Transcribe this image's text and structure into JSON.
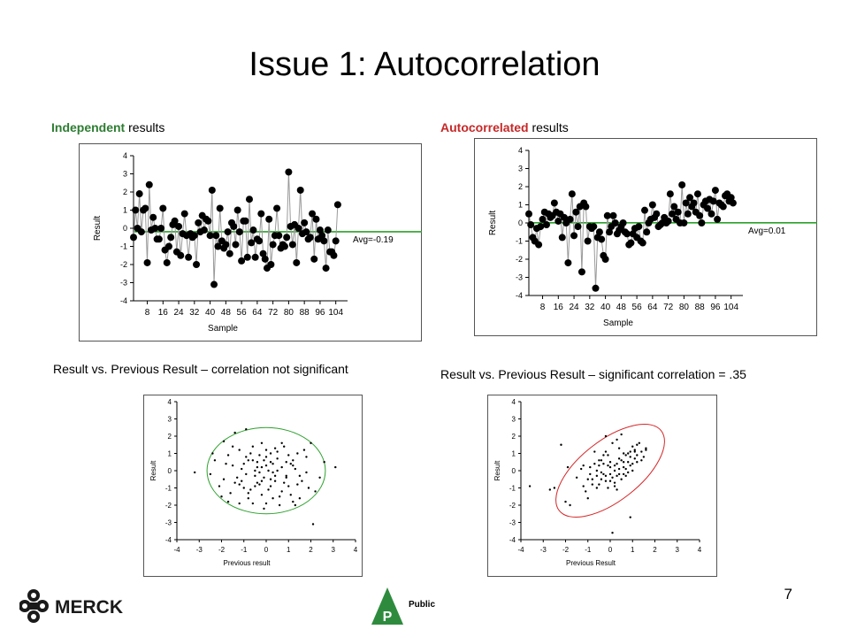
{
  "slide": {
    "title": "Issue 1: Autocorrelation",
    "page_number": "7",
    "logo_text": "MERCK",
    "public_mark": "P",
    "public_label": "Public"
  },
  "left": {
    "heading_bold": "Independent",
    "heading_rest": " results",
    "heading_color": "#2e7d32",
    "caption": "Result vs. Previous Result – correlation not significant"
  },
  "right": {
    "heading_bold": "Autocorrelated",
    "heading_rest": " results",
    "heading_color": "#c62828",
    "caption": "Result vs. Previous Result – significant correlation = .35"
  },
  "chart_data": [
    {
      "type": "line",
      "name": "independent-run-chart",
      "xlabel": "Sample",
      "ylabel": "Result",
      "xticks": [
        "8",
        "16",
        "24",
        "32",
        "40",
        "48",
        "56",
        "64",
        "72",
        "80",
        "88",
        "96",
        "104"
      ],
      "yticks": [
        "4",
        "3",
        "2",
        "1",
        "0",
        "-1",
        "-2",
        "-3",
        "-4"
      ],
      "xlim": [
        1,
        110
      ],
      "ylim": [
        -4,
        4
      ],
      "avg": -0.19,
      "avg_label": "Avg=-0.19",
      "avg_color": "#2ca02c",
      "x": [
        1,
        2,
        3,
        4,
        5,
        6,
        7,
        8,
        9,
        10,
        11,
        12,
        13,
        14,
        15,
        16,
        17,
        18,
        19,
        20,
        21,
        22,
        23,
        24,
        25,
        26,
        27,
        28,
        29,
        30,
        31,
        32,
        33,
        34,
        35,
        36,
        37,
        38,
        39,
        40,
        41,
        42,
        43,
        44,
        45,
        46,
        47,
        48,
        49,
        50,
        51,
        52,
        53,
        54,
        55,
        56,
        57,
        58,
        59,
        60,
        61,
        62,
        63,
        64,
        65,
        66,
        67,
        68,
        69,
        70,
        71,
        72,
        73,
        74,
        75,
        76,
        77,
        78,
        79,
        80,
        81,
        82,
        83,
        84,
        85,
        86,
        87,
        88,
        89,
        90,
        91,
        92,
        93,
        94,
        95,
        96,
        97,
        98,
        99,
        100,
        101,
        102,
        103,
        104,
        105
      ],
      "values": [
        -0.5,
        1.0,
        0.0,
        1.9,
        -0.2,
        1.0,
        1.1,
        -1.9,
        2.4,
        -0.1,
        0.6,
        0.0,
        -0.6,
        -0.6,
        0.0,
        1.1,
        -1.2,
        -1.9,
        -1.0,
        -0.5,
        0.2,
        0.4,
        -1.3,
        0.1,
        -1.5,
        -0.3,
        0.8,
        -0.4,
        -1.6,
        -0.3,
        -0.5,
        -0.4,
        -2.0,
        0.3,
        -0.2,
        0.7,
        -0.1,
        0.5,
        0.4,
        -0.4,
        2.1,
        -3.1,
        -0.4,
        -1.0,
        1.1,
        -0.7,
        -1.1,
        -0.9,
        -0.2,
        -1.4,
        0.3,
        0.1,
        -0.9,
        1.0,
        -0.2,
        -1.8,
        0.4,
        0.4,
        -1.6,
        1.6,
        -0.8,
        -0.1,
        -1.6,
        -0.6,
        -0.7,
        0.8,
        -1.4,
        -1.7,
        -2.2,
        0.5,
        -2.0,
        -0.9,
        -0.4,
        1.1,
        -0.4,
        -1.1,
        -0.9,
        -1.0,
        -0.5,
        3.1,
        0.1,
        -0.9,
        0.2,
        -1.9,
        0.0,
        2.1,
        -0.3,
        0.3,
        -0.2,
        -0.6,
        -0.5,
        0.8,
        -1.7,
        0.5,
        -0.6,
        -0.1,
        -0.4,
        -0.7,
        -2.2,
        -0.1,
        -1.3,
        -1.3,
        -1.5,
        -0.7,
        1.3
      ]
    },
    {
      "type": "line",
      "name": "autocorrelated-run-chart",
      "xlabel": "Sample",
      "ylabel": "Result",
      "xticks": [
        "8",
        "16",
        "24",
        "32",
        "40",
        "48",
        "56",
        "64",
        "72",
        "80",
        "88",
        "96",
        "104"
      ],
      "yticks": [
        "4",
        "3",
        "2",
        "1",
        "0",
        "-1",
        "-2",
        "-3",
        "-4"
      ],
      "xlim": [
        1,
        110
      ],
      "ylim": [
        -4,
        4
      ],
      "avg": 0.01,
      "avg_label": "Avg=0.01",
      "avg_color": "#2ca02c",
      "x": [
        1,
        2,
        3,
        4,
        5,
        6,
        7,
        8,
        9,
        10,
        11,
        12,
        13,
        14,
        15,
        16,
        17,
        18,
        19,
        20,
        21,
        22,
        23,
        24,
        25,
        26,
        27,
        28,
        29,
        30,
        31,
        32,
        33,
        34,
        35,
        36,
        37,
        38,
        39,
        40,
        41,
        42,
        43,
        44,
        45,
        46,
        47,
        48,
        49,
        50,
        51,
        52,
        53,
        54,
        55,
        56,
        57,
        58,
        59,
        60,
        61,
        62,
        63,
        64,
        65,
        66,
        67,
        68,
        69,
        70,
        71,
        72,
        73,
        74,
        75,
        76,
        77,
        78,
        79,
        80,
        81,
        82,
        83,
        84,
        85,
        86,
        87,
        88,
        89,
        90,
        91,
        92,
        93,
        94,
        95,
        96,
        97,
        98,
        99,
        100,
        101,
        102,
        103,
        104,
        105
      ],
      "values": [
        0.5,
        -0.1,
        -0.8,
        -1.0,
        -0.3,
        -1.2,
        -0.2,
        0.2,
        0.6,
        -0.1,
        0.5,
        0.3,
        0.4,
        1.1,
        0.6,
        0.1,
        0.5,
        -0.8,
        0.3,
        0.0,
        -2.2,
        0.2,
        1.6,
        -0.7,
        0.6,
        -0.2,
        0.9,
        -2.7,
        1.1,
        0.9,
        -1.0,
        -0.2,
        -0.3,
        -0.2,
        -3.6,
        -0.8,
        -0.5,
        -0.9,
        -1.8,
        -2.0,
        0.4,
        -0.5,
        -0.2,
        0.4,
        0.0,
        -0.6,
        -0.4,
        -0.2,
        0.0,
        -0.5,
        -0.6,
        -1.2,
        -1.1,
        -0.6,
        -0.3,
        -0.8,
        -0.2,
        -1.0,
        -1.1,
        0.7,
        -0.5,
        0.0,
        0.2,
        1.0,
        0.3,
        0.5,
        -0.2,
        -0.1,
        0.0,
        0.3,
        0.0,
        0.1,
        1.6,
        0.5,
        0.9,
        0.2,
        0.6,
        0.0,
        2.1,
        0.0,
        1.1,
        0.5,
        1.4,
        0.9,
        1.1,
        0.6,
        1.6,
        0.4,
        0.0,
        1.0,
        1.2,
        0.8,
        1.3,
        0.5,
        1.2,
        1.8,
        0.2,
        1.1,
        1.0,
        0.9,
        1.5,
        1.6,
        1.2,
        1.4,
        1.1
      ]
    },
    {
      "type": "scatter",
      "name": "independent-lag-scatter",
      "xlabel": "Previous result",
      "ylabel": "Result",
      "xticks": [
        "-4",
        "-3",
        "-2",
        "-1",
        "0",
        "1",
        "2",
        "3",
        "4"
      ],
      "yticks": [
        "4",
        "3",
        "2",
        "1",
        "0",
        "-1",
        "-2",
        "-3",
        "-4"
      ],
      "xlim": [
        -4,
        4
      ],
      "ylim": [
        -4,
        4
      ],
      "ellipse_color": "#2ca02c",
      "points": [
        [
          -1.2,
          -0.8
        ],
        [
          -0.6,
          0.6
        ],
        [
          0.2,
          -0.9
        ],
        [
          -0.4,
          0.2
        ],
        [
          0.5,
          1.1
        ],
        [
          -0.1,
          -0.4
        ],
        [
          -1.5,
          1.4
        ],
        [
          1.2,
          0.3
        ],
        [
          -0.8,
          -1.6
        ],
        [
          0.3,
          0.4
        ],
        [
          -2.5,
          -0.2
        ],
        [
          3.1,
          0.2
        ],
        [
          -0.9,
          2.4
        ],
        [
          0.0,
          -1.9
        ],
        [
          1.5,
          -0.3
        ],
        [
          -1.7,
          0.9
        ],
        [
          0.7,
          -1.2
        ],
        [
          -0.2,
          1.6
        ],
        [
          2.1,
          -3.1
        ],
        [
          -3.2,
          -0.1
        ],
        [
          0.9,
          0.5
        ],
        [
          -0.5,
          -0.3
        ],
        [
          1.1,
          -1.4
        ],
        [
          -1.1,
          0.1
        ],
        [
          0.4,
          -0.6
        ],
        [
          -0.3,
          0.9
        ],
        [
          1.8,
          0.8
        ],
        [
          -1.9,
          -0.5
        ],
        [
          0.1,
          0.0
        ],
        [
          -0.7,
          -1.1
        ],
        [
          2.0,
          1.6
        ],
        [
          -1.4,
          2.2
        ],
        [
          0.6,
          -2.0
        ],
        [
          -0.4,
          -0.7
        ],
        [
          1.3,
          0.1
        ],
        [
          -2.3,
          0.6
        ],
        [
          0.8,
          1.4
        ],
        [
          -0.9,
          -0.2
        ],
        [
          0.2,
          1.0
        ],
        [
          -1.6,
          -1.3
        ],
        [
          1.6,
          -0.6
        ],
        [
          -0.2,
          -1.4
        ],
        [
          0.0,
          0.3
        ],
        [
          -1.2,
          1.2
        ],
        [
          0.5,
          0.7
        ],
        [
          2.4,
          -0.4
        ],
        [
          -0.6,
          -1.9
        ],
        [
          1.0,
          -0.9
        ],
        [
          -1.8,
          0.4
        ],
        [
          0.3,
          -0.1
        ],
        [
          -0.8,
          0.6
        ],
        [
          1.4,
          1.0
        ],
        [
          -2.1,
          -0.9
        ],
        [
          0.7,
          0.2
        ],
        [
          -0.1,
          -2.2
        ],
        [
          1.9,
          -1.0
        ],
        [
          -1.3,
          -0.4
        ],
        [
          0.4,
          1.3
        ],
        [
          -0.5,
          0.0
        ],
        [
          1.2,
          -1.8
        ],
        [
          -1.0,
          -1.0
        ],
        [
          2.6,
          0.5
        ],
        [
          -0.3,
          -0.8
        ],
        [
          0.9,
          -0.3
        ],
        [
          -1.5,
          0.3
        ],
        [
          0.0,
          0.8
        ],
        [
          -2.0,
          -1.5
        ],
        [
          1.1,
          0.4
        ],
        [
          -0.7,
          1.0
        ],
        [
          0.6,
          -1.5
        ],
        [
          -1.1,
          -0.6
        ],
        [
          1.7,
          1.2
        ],
        [
          -0.4,
          0.5
        ],
        [
          0.2,
          -0.5
        ],
        [
          -1.9,
          1.7
        ],
        [
          0.8,
          -0.7
        ],
        [
          -0.2,
          0.2
        ],
        [
          1.3,
          -2.0
        ],
        [
          -0.9,
          0.8
        ],
        [
          0.1,
          -1.1
        ],
        [
          2.2,
          -1.2
        ],
        [
          -1.4,
          -0.7
        ],
        [
          0.5,
          0.0
        ],
        [
          -0.6,
          1.4
        ],
        [
          1.0,
          0.9
        ],
        [
          -1.7,
          -1.8
        ],
        [
          0.3,
          -1.6
        ],
        [
          -0.1,
          0.6
        ],
        [
          1.5,
          -1.6
        ],
        [
          -0.8,
          -1.3
        ],
        [
          0.7,
          1.6
        ],
        [
          -0.3,
          -0.1
        ],
        [
          1.8,
          -0.1
        ],
        [
          -1.2,
          -1.9
        ],
        [
          0.4,
          -0.3
        ],
        [
          -2.4,
          1.0
        ],
        [
          1.2,
          0.6
        ],
        [
          -0.5,
          -0.9
        ],
        [
          0.0,
          1.2
        ],
        [
          -1.0,
          0.4
        ],
        [
          0.9,
          -0.4
        ],
        [
          -0.2,
          -0.6
        ],
        [
          1.4,
          -0.8
        ],
        [
          0.2,
          0.5
        ]
      ]
    },
    {
      "type": "scatter",
      "name": "autocorrelated-lag-scatter",
      "xlabel": "Previous Result",
      "ylabel": "Result",
      "xticks": [
        "-4",
        "-3",
        "-2",
        "-1",
        "0",
        "1",
        "2",
        "3",
        "4"
      ],
      "yticks": [
        "4",
        "3",
        "2",
        "1",
        "0",
        "-1",
        "-2",
        "-3",
        "-4"
      ],
      "xlim": [
        -4,
        4
      ],
      "ylim": [
        -4,
        4
      ],
      "ellipse_color": "#d62728",
      "points": [
        [
          -3.6,
          -0.9
        ],
        [
          -2.7,
          -1.1
        ],
        [
          -2.2,
          1.5
        ],
        [
          -2.0,
          -1.8
        ],
        [
          -1.8,
          -2.0
        ],
        [
          -1.2,
          -0.9
        ],
        [
          -1.0,
          -0.5
        ],
        [
          -0.9,
          0.2
        ],
        [
          -0.8,
          -0.5
        ],
        [
          -0.7,
          0.4
        ],
        [
          -0.6,
          -0.3
        ],
        [
          -0.5,
          0.6
        ],
        [
          -0.5,
          -0.8
        ],
        [
          -0.4,
          -0.1
        ],
        [
          -0.3,
          -0.2
        ],
        [
          -0.3,
          0.9
        ],
        [
          -0.2,
          -0.6
        ],
        [
          -0.2,
          1.1
        ],
        [
          -0.1,
          -1.0
        ],
        [
          -0.1,
          0.3
        ],
        [
          0.0,
          -0.2
        ],
        [
          0.0,
          0.5
        ],
        [
          0.1,
          -0.4
        ],
        [
          0.1,
          1.6
        ],
        [
          0.2,
          -0.7
        ],
        [
          0.2,
          0.0
        ],
        [
          0.3,
          0.4
        ],
        [
          0.3,
          -1.1
        ],
        [
          0.4,
          0.1
        ],
        [
          0.4,
          -0.2
        ],
        [
          0.5,
          0.6
        ],
        [
          0.5,
          -0.5
        ],
        [
          0.6,
          1.0
        ],
        [
          0.6,
          0.2
        ],
        [
          0.7,
          -0.3
        ],
        [
          0.7,
          0.9
        ],
        [
          0.8,
          0.5
        ],
        [
          0.8,
          -0.1
        ],
        [
          0.9,
          1.1
        ],
        [
          0.9,
          0.3
        ],
        [
          1.0,
          1.4
        ],
        [
          1.0,
          0.0
        ],
        [
          1.1,
          0.7
        ],
        [
          1.1,
          1.2
        ],
        [
          1.2,
          0.5
        ],
        [
          1.2,
          0.9
        ],
        [
          1.3,
          1.6
        ],
        [
          1.4,
          1.1
        ],
        [
          1.5,
          0.8
        ],
        [
          1.6,
          1.3
        ],
        [
          1.6,
          1.2
        ],
        [
          -1.5,
          -0.4
        ],
        [
          -1.3,
          0.1
        ],
        [
          -1.1,
          -1.2
        ],
        [
          -0.8,
          -0.8
        ],
        [
          -0.6,
          0.0
        ],
        [
          -0.4,
          -0.5
        ],
        [
          -0.2,
          -0.3
        ],
        [
          0.0,
          -0.6
        ],
        [
          0.2,
          0.3
        ],
        [
          0.4,
          0.7
        ],
        [
          0.6,
          -0.2
        ],
        [
          0.8,
          1.0
        ],
        [
          1.0,
          0.4
        ],
        [
          0.5,
          2.1
        ],
        [
          0.3,
          1.8
        ],
        [
          -0.2,
          2.0
        ],
        [
          0.1,
          -3.6
        ],
        [
          0.9,
          -2.7
        ],
        [
          -1.0,
          -1.6
        ],
        [
          -2.5,
          -1.0
        ],
        [
          -1.9,
          0.2
        ],
        [
          -0.9,
          -0.2
        ],
        [
          -0.5,
          0.3
        ],
        [
          -0.3,
          0.4
        ],
        [
          0.0,
          0.2
        ],
        [
          0.2,
          -0.9
        ],
        [
          0.4,
          1.3
        ],
        [
          0.7,
          0.1
        ],
        [
          1.1,
          1.1
        ],
        [
          1.4,
          0.6
        ],
        [
          -0.7,
          1.1
        ],
        [
          -0.4,
          0.6
        ],
        [
          -0.1,
          0.9
        ],
        [
          0.3,
          -0.3
        ],
        [
          0.6,
          0.5
        ],
        [
          0.9,
          0.8
        ],
        [
          1.2,
          1.5
        ],
        [
          -1.2,
          0.3
        ],
        [
          -0.6,
          -1.0
        ]
      ]
    }
  ]
}
